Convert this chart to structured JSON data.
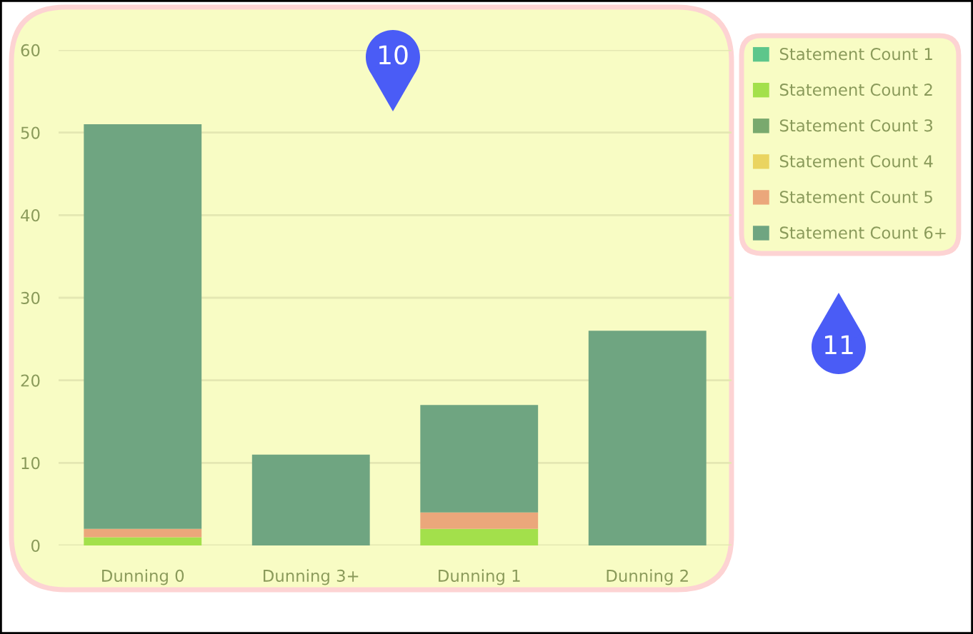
{
  "chart_data": {
    "type": "bar",
    "stacked": true,
    "categories": [
      "Dunning 0",
      "Dunning 3+",
      "Dunning 1",
      "Dunning 2"
    ],
    "series": [
      {
        "name": "Statement Count 1",
        "color": "#5dc68b",
        "values": [
          0,
          0,
          0,
          0
        ]
      },
      {
        "name": "Statement Count 2",
        "color": "#a3e04b",
        "values": [
          1,
          0,
          2,
          0
        ]
      },
      {
        "name": "Statement Count 3",
        "color": "#79a96e",
        "values": [
          0,
          0,
          0,
          0
        ]
      },
      {
        "name": "Statement Count 4",
        "color": "#ead460",
        "values": [
          0,
          0,
          0,
          0
        ]
      },
      {
        "name": "Statement Count 5",
        "color": "#eba77b",
        "values": [
          1,
          0,
          2,
          0
        ]
      },
      {
        "name": "Statement Count 6+",
        "color": "#6fa581",
        "values": [
          49,
          11,
          13,
          26
        ]
      }
    ],
    "ylim": [
      0,
      60
    ],
    "yticks": [
      0,
      10,
      20,
      30,
      40,
      50,
      60
    ],
    "grid": "y",
    "legend": "right",
    "annotations": [
      "10",
      "11"
    ]
  }
}
